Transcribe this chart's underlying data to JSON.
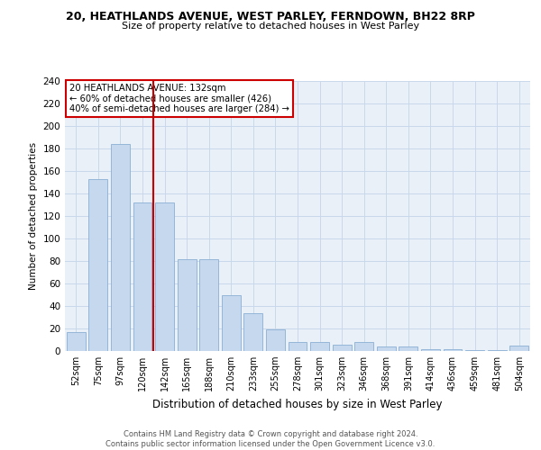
{
  "title": "20, HEATHLANDS AVENUE, WEST PARLEY, FERNDOWN, BH22 8RP",
  "subtitle": "Size of property relative to detached houses in West Parley",
  "xlabel": "Distribution of detached houses by size in West Parley",
  "ylabel": "Number of detached properties",
  "bar_labels": [
    "52sqm",
    "75sqm",
    "97sqm",
    "120sqm",
    "142sqm",
    "165sqm",
    "188sqm",
    "210sqm",
    "233sqm",
    "255sqm",
    "278sqm",
    "301sqm",
    "323sqm",
    "346sqm",
    "368sqm",
    "391sqm",
    "414sqm",
    "436sqm",
    "459sqm",
    "481sqm",
    "504sqm"
  ],
  "bar_values": [
    17,
    153,
    184,
    132,
    132,
    82,
    82,
    50,
    34,
    19,
    8,
    8,
    6,
    8,
    4,
    4,
    2,
    2,
    1,
    1,
    5
  ],
  "bar_color": "#c5d8ee",
  "bar_edge_color": "#8bafd4",
  "vline_color": "#cc0000",
  "annotation_lines": [
    "20 HEATHLANDS AVENUE: 132sqm",
    "← 60% of detached houses are smaller (426)",
    "40% of semi-detached houses are larger (284) →"
  ],
  "annotation_box_color": "#cc0000",
  "ylim": [
    0,
    240
  ],
  "yticks": [
    0,
    20,
    40,
    60,
    80,
    100,
    120,
    140,
    160,
    180,
    200,
    220,
    240
  ],
  "grid_color": "#c8d8ea",
  "background_color": "#eaf0f8",
  "footer_line1": "Contains HM Land Registry data © Crown copyright and database right 2024.",
  "footer_line2": "Contains public sector information licensed under the Open Government Licence v3.0."
}
